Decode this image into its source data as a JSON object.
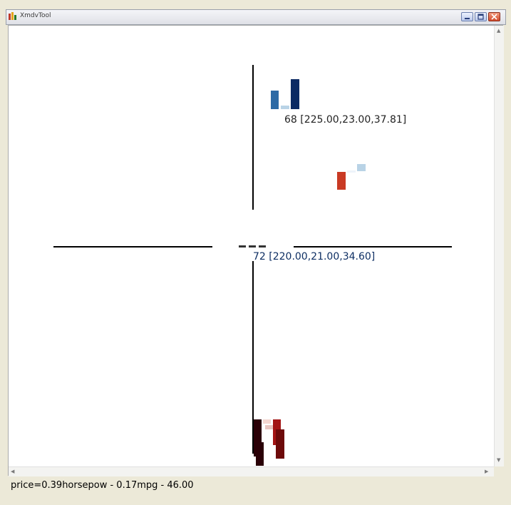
{
  "window": {
    "title": "XmdvTool",
    "status_text": "price=0.39horsepow - 0.17mpg - 46.00"
  },
  "plot": {
    "label_top": "68 [225.00,23.00,37.81]",
    "label_center": "72 [220.00,21.00,34.60]"
  },
  "colors": {
    "blue_dark": "#0b2a63",
    "blue_mid": "#2d6aa5",
    "blue_light": "#b9d3e6",
    "red": "#c93a24",
    "red_dark": "#6d0a0a",
    "black_red": "#2a0006",
    "axis": "#000000"
  },
  "icons": {
    "app": "app-icon",
    "minimize": "minimize-icon",
    "maximize": "maximize-icon",
    "close": "close-icon"
  }
}
